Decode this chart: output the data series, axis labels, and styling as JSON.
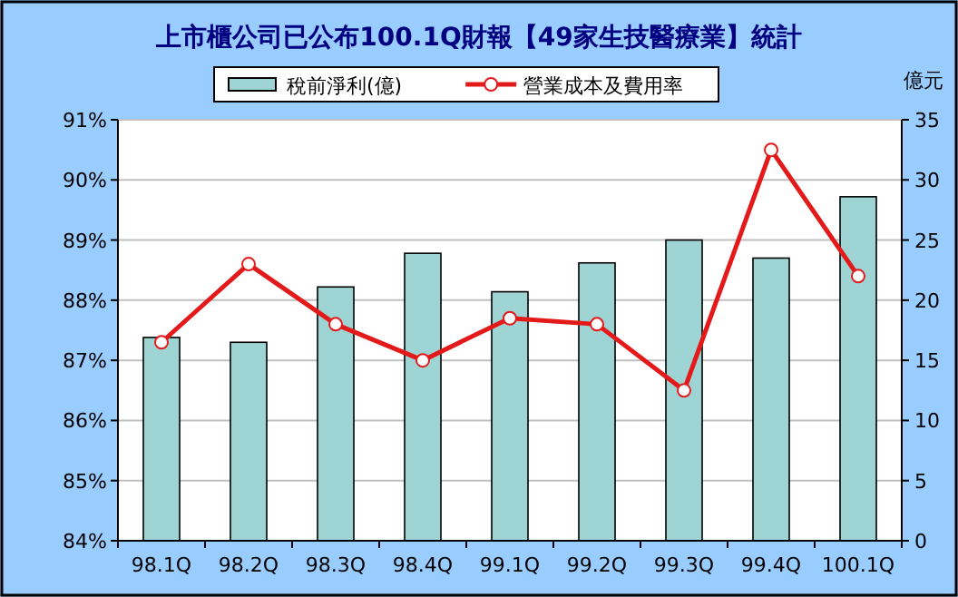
{
  "chart_data": {
    "type": "bar",
    "title": "上市櫃公司已公布100.1Q財報【49家生技醫療業】統計",
    "categories": [
      "98.1Q",
      "98.2Q",
      "98.3Q",
      "98.4Q",
      "99.1Q",
      "99.2Q",
      "99.3Q",
      "99.4Q",
      "100.1Q"
    ],
    "series": [
      {
        "name": "稅前淨利(億)",
        "axis": "y2",
        "color": "#9fd4d4",
        "values": [
          16.9,
          16.5,
          21.1,
          23.9,
          20.7,
          23.1,
          25.0,
          23.5,
          28.6
        ]
      },
      {
        "name": "營業成本及費用率",
        "type": "line",
        "color": "#e41a1a",
        "marker": "circle",
        "values": [
          87.3,
          88.6,
          87.6,
          87.0,
          87.7,
          87.6,
          86.5,
          90.5,
          88.4
        ]
      }
    ],
    "y2label": "億元",
    "ylim": [
      84,
      91
    ],
    "yticks": [
      {
        "value": 84,
        "label": "84%"
      },
      {
        "value": 85,
        "label": "85%"
      },
      {
        "value": 86,
        "label": "86%"
      },
      {
        "value": 87,
        "label": "87%"
      },
      {
        "value": 88,
        "label": "88%"
      },
      {
        "value": 89,
        "label": "89%"
      },
      {
        "value": 90,
        "label": "90%"
      },
      {
        "value": 91,
        "label": "91%"
      }
    ],
    "y2lim": [
      0,
      35
    ],
    "y2ticks": [
      0,
      5,
      10,
      15,
      20,
      25,
      30,
      35
    ],
    "grid": "y",
    "legend": "top"
  }
}
